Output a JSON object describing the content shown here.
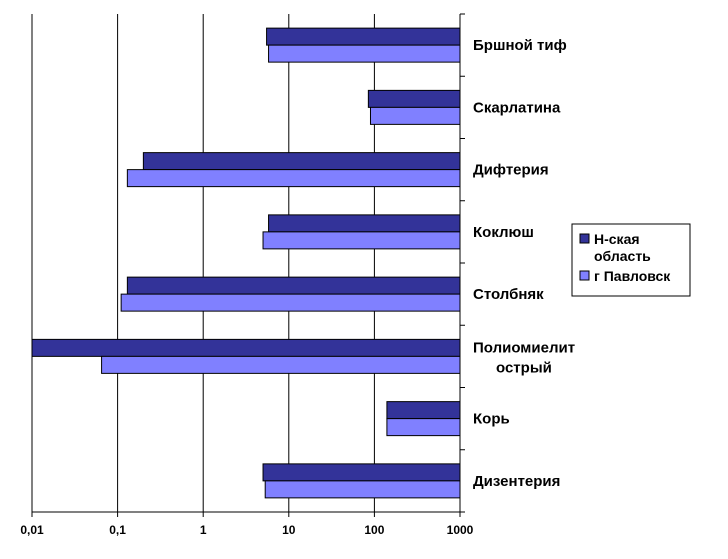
{
  "chart_data": {
    "type": "bar",
    "orientation": "horizontal",
    "x_scale": "log",
    "xlim": [
      0.01,
      1000
    ],
    "x_ticks": [
      "0,01",
      "0,1",
      "1",
      "10",
      "100",
      "1000"
    ],
    "grid": true,
    "legend_position": "right",
    "categories": [
      [
        "Бршной тиф"
      ],
      [
        "Скарлатина"
      ],
      [
        "Дифтерия"
      ],
      [
        "Коклюш"
      ],
      [
        "Столбняк"
      ],
      [
        "Полиомиелит",
        "острый"
      ],
      [
        "Корь"
      ],
      [
        "Дизентерия"
      ]
    ],
    "series": [
      {
        "name": "Н-ская область",
        "legend_lines": [
          "Н-ская",
          "область"
        ],
        "color": "#333399",
        "values": [
          5.5,
          85,
          0.2,
          5.8,
          0.13,
          0.01,
          140,
          5
        ]
      },
      {
        "name": "г Павловск",
        "legend_lines": [
          "г Павловск"
        ],
        "color": "#8080ff",
        "values": [
          5.8,
          90,
          0.13,
          5,
          0.11,
          0.065,
          140,
          5.3
        ]
      }
    ]
  }
}
